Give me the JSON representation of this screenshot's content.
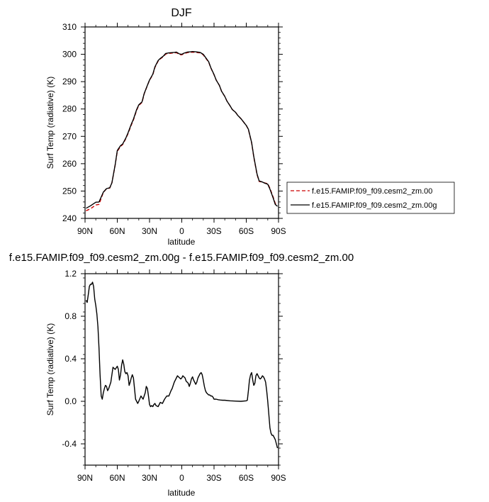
{
  "chart_data": [
    {
      "type": "line",
      "title": "DJF",
      "xlabel": "latitude",
      "ylabel": "Surf Temp (radiative) (K)",
      "xlim": [
        90,
        -90
      ],
      "ylim": [
        240,
        310
      ],
      "x_ticks": [
        90,
        60,
        30,
        0,
        -30,
        -60,
        -90
      ],
      "x_tick_labels": [
        "90N",
        "60N",
        "30N",
        "0",
        "30S",
        "60S",
        "90S"
      ],
      "y_ticks": [
        240,
        250,
        260,
        270,
        280,
        290,
        300,
        310
      ],
      "y_tick_labels": [
        "240",
        "250",
        "260",
        "270",
        "280",
        "290",
        "300",
        "310"
      ],
      "legend_placement": "right",
      "series": [
        {
          "name": "f.e15.FAMIP.f09_f09.cesm2_zm.00",
          "color": "#cc0000",
          "dash": "dashed",
          "x": [
            89,
            85,
            80,
            77,
            73,
            70,
            67,
            65,
            62,
            60,
            57,
            55,
            52,
            50,
            47,
            45,
            42,
            40,
            37,
            35,
            32,
            30,
            27,
            25,
            22,
            20,
            17,
            15,
            12,
            10,
            7,
            5,
            2,
            0,
            -2,
            -5,
            -8,
            -10,
            -13,
            -15,
            -17,
            -20,
            -22,
            -25,
            -27,
            -30,
            -32,
            -35,
            -37,
            -40,
            -42,
            -45,
            -47,
            -50,
            -52,
            -55,
            -57,
            -60,
            -62,
            -65,
            -67,
            -70,
            -72,
            -75,
            -77,
            -80,
            -82,
            -85,
            -87,
            -89
          ],
          "y": [
            242.8,
            243.5,
            244.9,
            245.1,
            249.5,
            250.8,
            251.1,
            253.0,
            259.5,
            264.5,
            266.3,
            267.0,
            269.2,
            271.0,
            274.1,
            276.0,
            279.5,
            281.3,
            282.4,
            285.5,
            288.6,
            290.5,
            292.5,
            295.2,
            297.5,
            298.3,
            299.2,
            300.1,
            300.3,
            300.4,
            300.5,
            300.6,
            299.9,
            299.8,
            300.2,
            300.6,
            300.7,
            300.8,
            300.7,
            300.6,
            300.5,
            299.8,
            298.7,
            297.2,
            295.0,
            292.5,
            290.6,
            288.6,
            286.5,
            284.6,
            282.9,
            281.1,
            279.8,
            278.8,
            277.7,
            276.5,
            275.5,
            274.0,
            272.5,
            267.5,
            262.4,
            256.0,
            253.5,
            253.3,
            253.0,
            252.7,
            251.0,
            247.8,
            245.5,
            244.9
          ]
        },
        {
          "name": "f.e15.FAMIP.f09_f09.cesm2_zm.00g",
          "color": "#000000",
          "dash": "solid",
          "x": [
            89,
            85,
            80,
            77,
            73,
            70,
            67,
            65,
            62,
            60,
            57,
            55,
            52,
            50,
            47,
            45,
            42,
            40,
            37,
            35,
            32,
            30,
            27,
            25,
            22,
            20,
            17,
            15,
            12,
            10,
            7,
            5,
            2,
            0,
            -2,
            -5,
            -8,
            -10,
            -13,
            -15,
            -17,
            -20,
            -22,
            -25,
            -27,
            -30,
            -32,
            -35,
            -37,
            -40,
            -42,
            -45,
            -47,
            -50,
            -52,
            -55,
            -57,
            -60,
            -62,
            -65,
            -67,
            -70,
            -72,
            -75,
            -77,
            -80,
            -82,
            -85,
            -87,
            -89
          ],
          "y": [
            243.7,
            244.6,
            245.9,
            246.0,
            249.6,
            250.9,
            251.2,
            253.0,
            259.6,
            264.8,
            266.6,
            267.2,
            269.4,
            271.3,
            274.4,
            276.3,
            279.8,
            281.5,
            282.6,
            285.6,
            288.7,
            290.6,
            292.7,
            295.4,
            297.7,
            298.5,
            299.4,
            300.3,
            300.5,
            300.6,
            300.7,
            300.8,
            300.1,
            300.0,
            300.4,
            300.8,
            300.9,
            301.0,
            300.9,
            300.8,
            300.7,
            300.0,
            298.9,
            297.3,
            295.1,
            292.6,
            290.6,
            288.6,
            286.5,
            284.6,
            282.9,
            281.1,
            279.8,
            278.8,
            277.7,
            276.5,
            275.5,
            274.0,
            272.6,
            267.7,
            262.6,
            256.2,
            253.7,
            253.3,
            252.9,
            252.5,
            250.7,
            247.5,
            245.1,
            244.4
          ]
        }
      ]
    },
    {
      "type": "line",
      "title": "f.e15.FAMIP.f09_f09.cesm2_zm.00g - f.e15.FAMIP.f09_f09.cesm2_zm.00",
      "xlabel": "latitude",
      "ylabel": "Surf Temp (radiative) (K)",
      "xlim": [
        90,
        -90
      ],
      "ylim": [
        -0.6,
        1.2
      ],
      "x_ticks": [
        90,
        60,
        30,
        0,
        -30,
        -60,
        -90
      ],
      "x_tick_labels": [
        "90N",
        "60N",
        "30N",
        "0",
        "30S",
        "60S",
        "90S"
      ],
      "y_ticks": [
        -0.4,
        0.0,
        0.4,
        0.8,
        1.2
      ],
      "y_tick_labels": [
        "-0.4",
        "0.0",
        "0.4",
        "0.8",
        "1.2"
      ],
      "series": [
        {
          "color": "#000000",
          "x": [
            89,
            88,
            87,
            86,
            85,
            84,
            83,
            82,
            81,
            80,
            79,
            78,
            77,
            76,
            75,
            74,
            73,
            72,
            71,
            70,
            69,
            68,
            66,
            64,
            62,
            60,
            59,
            58,
            57,
            56,
            55,
            54,
            53,
            52,
            51,
            50,
            49,
            48,
            47,
            46,
            45,
            44,
            43,
            42,
            41,
            40,
            38,
            36,
            34,
            33,
            32,
            31,
            30,
            29,
            28,
            27,
            26,
            25,
            24,
            22,
            20,
            18,
            16,
            14,
            12,
            10,
            9,
            8,
            7,
            6,
            5,
            4,
            3,
            2,
            1,
            0,
            -1,
            -2,
            -3,
            -4,
            -5,
            -6,
            -7,
            -8,
            -9,
            -10,
            -11,
            -12,
            -13,
            -14,
            -15,
            -16,
            -17,
            -18,
            -19,
            -20,
            -21,
            -22,
            -23,
            -24,
            -25,
            -26,
            -27,
            -28,
            -29,
            -30,
            -32,
            -34,
            -36,
            -38,
            -40,
            -45,
            -50,
            -55,
            -60,
            -61,
            -62,
            -63,
            -64,
            -65,
            -66,
            -67,
            -68,
            -69,
            -70,
            -71,
            -72,
            -73,
            -74,
            -75,
            -76,
            -77,
            -78,
            -79,
            -80,
            -81,
            -82,
            -83,
            -84,
            -85,
            -86,
            -87,
            -88,
            -89
          ],
          "y": [
            0.95,
            0.93,
            1.0,
            1.08,
            1.1,
            1.1,
            1.12,
            1.08,
            0.96,
            0.9,
            0.82,
            0.7,
            0.5,
            0.25,
            0.05,
            0.02,
            0.08,
            0.12,
            0.15,
            0.14,
            0.1,
            0.12,
            0.18,
            0.32,
            0.3,
            0.33,
            0.3,
            0.2,
            0.25,
            0.34,
            0.39,
            0.35,
            0.28,
            0.26,
            0.27,
            0.24,
            0.15,
            0.18,
            0.22,
            0.25,
            0.22,
            0.12,
            0.02,
            0.0,
            -0.02,
            0.0,
            0.05,
            0.02,
            0.08,
            0.14,
            0.12,
            0.05,
            -0.03,
            -0.05,
            -0.04,
            -0.05,
            -0.03,
            -0.02,
            -0.04,
            -0.05,
            -0.01,
            -0.02,
            0.02,
            0.05,
            0.05,
            0.1,
            0.12,
            0.15,
            0.18,
            0.2,
            0.22,
            0.24,
            0.23,
            0.22,
            0.21,
            0.22,
            0.24,
            0.23,
            0.22,
            0.19,
            0.18,
            0.17,
            0.14,
            0.17,
            0.21,
            0.23,
            0.2,
            0.18,
            0.16,
            0.18,
            0.22,
            0.24,
            0.26,
            0.27,
            0.25,
            0.2,
            0.14,
            0.1,
            0.08,
            0.07,
            0.06,
            0.06,
            0.05,
            0.05,
            0.04,
            0.02,
            0.02,
            0.015,
            0.012,
            0.01,
            0.01,
            0.005,
            0.002,
            0.0,
            0.005,
            0.01,
            0.1,
            0.2,
            0.25,
            0.27,
            0.2,
            0.15,
            0.17,
            0.24,
            0.26,
            0.24,
            0.22,
            0.21,
            0.22,
            0.24,
            0.23,
            0.21,
            0.18,
            0.1,
            0.0,
            -0.12,
            -0.25,
            -0.3,
            -0.32,
            -0.32,
            -0.34,
            -0.36,
            -0.4,
            -0.44
          ]
        }
      ]
    }
  ],
  "legend": {
    "entries": [
      {
        "label": "f.e15.FAMIP.f09_f09.cesm2_zm.00"
      },
      {
        "label": "f.e15.FAMIP.f09_f09.cesm2_zm.00g"
      }
    ]
  }
}
